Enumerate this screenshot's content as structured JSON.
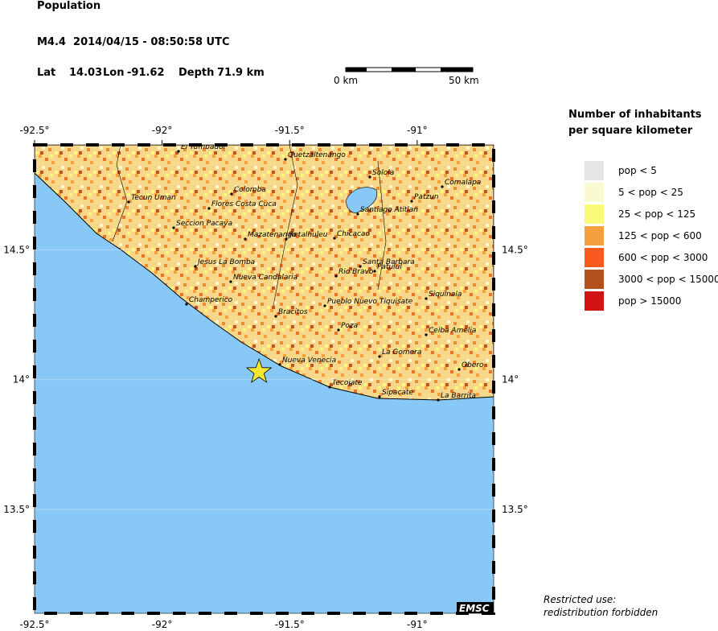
{
  "header": {
    "title": "Population",
    "event": "M4.4  2014/04/15 - 08:50:58 UTC",
    "lat_label": "Lat",
    "lat": 14.03,
    "lon_label": "Lon",
    "lon": -91.62,
    "depth_label": "Depth",
    "depth": "71.9 km"
  },
  "scale": {
    "start": "0 km",
    "end": "50 km"
  },
  "map": {
    "xlim": [
      -92.5,
      -90.7
    ],
    "ylim": [
      13.1,
      14.904
    ],
    "xticks": [
      {
        "value": -92.5,
        "label": "-92.5°"
      },
      {
        "value": -92,
        "label": "-92°"
      },
      {
        "value": -91.5,
        "label": "-91.5°"
      },
      {
        "value": -91,
        "label": "-91°"
      }
    ],
    "yticks": [
      {
        "value": 13.5,
        "label": "13.5°"
      },
      {
        "value": 14,
        "label": "14°"
      },
      {
        "value": 14.5,
        "label": "14.5°"
      }
    ],
    "cities": [
      "El Tumbador",
      "Quetzaltenango",
      "Solola",
      "Comalapa",
      "Tecun Uman",
      "Colomba",
      "Flores Costa Cuca",
      "Patzun",
      "Santiago Atitlan",
      "Seccion Pacaya",
      "Mazatenango",
      "Retalhuleu",
      "Chicacao",
      "Jesus La Bomba",
      "Santa Barbara",
      "Patulul",
      "Rio Bravo",
      "Nueva Candalaria",
      "Siquinala",
      "Champerico",
      "Pueblo Nuevo Tiquisate",
      "Bracitos",
      "Poza",
      "Ceiba Amelia",
      "Nueva Venecia",
      "La Gomera",
      "Obero",
      "Tecojate",
      "Sipacate",
      "La Barrita"
    ],
    "credit": "EMSC"
  },
  "legend": {
    "title": [
      "Number of inhabitants",
      "per square kilometer"
    ],
    "items": [
      {
        "label": "pop < 5",
        "color": "#e6e6e6"
      },
      {
        "label": "5 < pop < 25",
        "color": "#fafad0"
      },
      {
        "label": "25 < pop < 125",
        "color": "#fafa78"
      },
      {
        "label": "125 < pop < 600",
        "color": "#f5a03c"
      },
      {
        "label": "600 < pop < 3000",
        "color": "#fa5a1e"
      },
      {
        "label": "3000 < pop < 15000",
        "color": "#b4501e"
      },
      {
        "label": "pop > 15000",
        "color": "#d21414"
      }
    ]
  },
  "note": [
    "Restricted use:",
    "redistribution forbidden"
  ]
}
